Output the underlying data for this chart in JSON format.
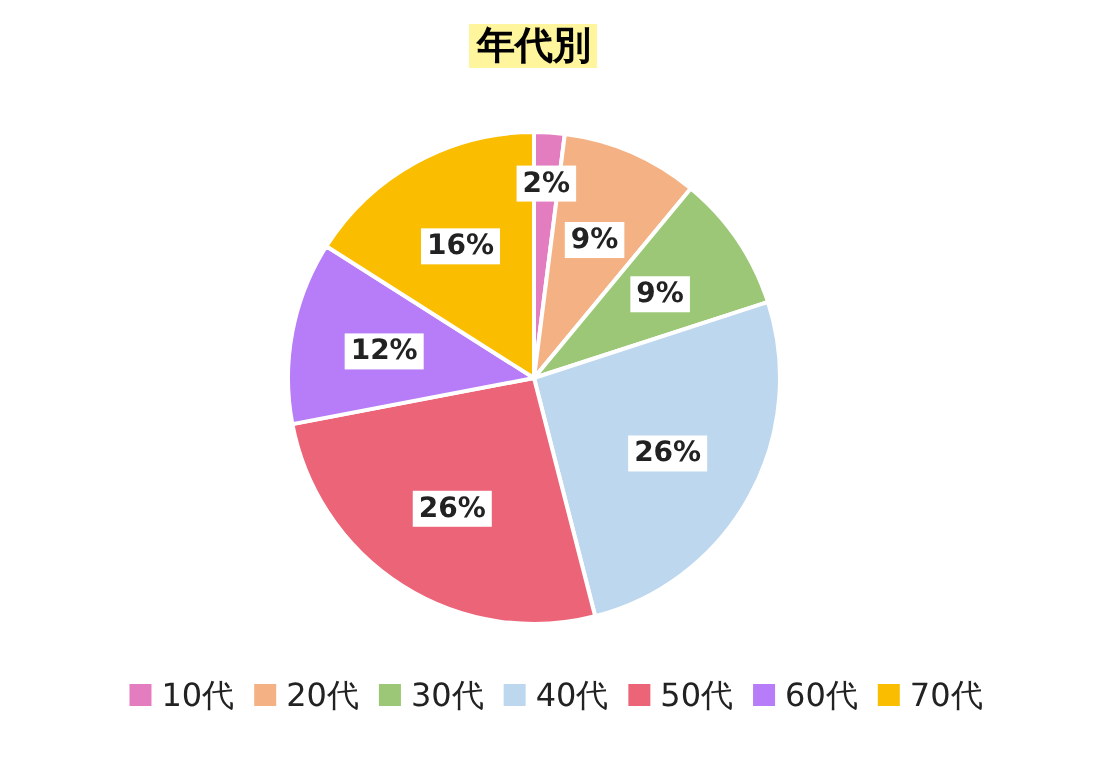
{
  "chart_data": {
    "type": "pie",
    "title": "年代別",
    "categories": [
      "10代",
      "20代",
      "30代",
      "40代",
      "50代",
      "60代",
      "70代"
    ],
    "values": [
      2,
      9,
      9,
      26,
      26,
      12,
      16
    ],
    "value_labels": [
      "2%",
      "9%",
      "9%",
      "26%",
      "26%",
      "12%",
      "16%"
    ],
    "colors": [
      "#e47cc0",
      "#f4b183",
      "#9cc776",
      "#bdd7ee",
      "#ec6478",
      "#b77cf7",
      "#fbbd00"
    ],
    "legend": "bottom"
  }
}
